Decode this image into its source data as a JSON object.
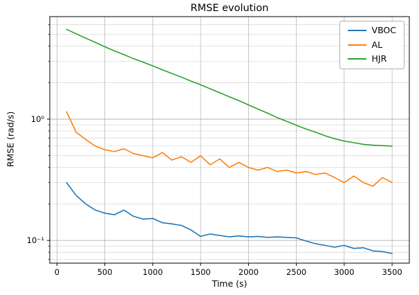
{
  "title": "RMSE evolution",
  "axes": {
    "xlabel": "Time (s)",
    "ylabel": "RMSE (rad/s)"
  },
  "legend": {
    "items": [
      {
        "label": "VBOC"
      },
      {
        "label": "AL"
      },
      {
        "label": "HJR"
      }
    ]
  },
  "chart_data": {
    "type": "line",
    "title": "RMSE evolution",
    "xlabel": "Time (s)",
    "ylabel": "RMSE (rad/s)",
    "yscale": "log",
    "grid": true,
    "legend_position": "upper right",
    "xlim": [
      -75,
      3680
    ],
    "ylim": [
      0.065,
      7.0
    ],
    "xticks": [
      0,
      500,
      1000,
      1500,
      2000,
      2500,
      3000,
      3500
    ],
    "yticks": [
      {
        "value": 1,
        "label": "10⁰"
      },
      {
        "value": 0.1,
        "label": "10⁻¹"
      }
    ],
    "x": [
      100,
      200,
      300,
      400,
      500,
      600,
      700,
      800,
      900,
      1000,
      1100,
      1200,
      1300,
      1400,
      1500,
      1600,
      1700,
      1800,
      1900,
      2000,
      2100,
      2200,
      2300,
      2400,
      2500,
      2600,
      2700,
      2800,
      2900,
      3000,
      3100,
      3200,
      3300,
      3400,
      3500
    ],
    "series": [
      {
        "name": "VBOC",
        "color": "#1f77b4",
        "values": [
          0.3,
          0.235,
          0.2,
          0.178,
          0.168,
          0.163,
          0.178,
          0.158,
          0.15,
          0.152,
          0.14,
          0.137,
          0.133,
          0.122,
          0.108,
          0.113,
          0.11,
          0.107,
          0.109,
          0.107,
          0.108,
          0.106,
          0.107,
          0.106,
          0.105,
          0.099,
          0.094,
          0.091,
          0.088,
          0.091,
          0.086,
          0.087,
          0.082,
          0.081,
          0.078
        ]
      },
      {
        "name": "AL",
        "color": "#ff7f0e",
        "values": [
          1.15,
          0.78,
          0.68,
          0.6,
          0.56,
          0.54,
          0.57,
          0.52,
          0.5,
          0.48,
          0.53,
          0.46,
          0.49,
          0.44,
          0.5,
          0.42,
          0.47,
          0.4,
          0.44,
          0.4,
          0.38,
          0.4,
          0.37,
          0.38,
          0.36,
          0.37,
          0.35,
          0.36,
          0.33,
          0.3,
          0.34,
          0.3,
          0.28,
          0.33,
          0.3
        ]
      },
      {
        "name": "HJR",
        "color": "#2ca02c",
        "values": [
          5.5,
          5.05,
          4.65,
          4.3,
          3.95,
          3.65,
          3.4,
          3.15,
          2.95,
          2.75,
          2.55,
          2.38,
          2.22,
          2.06,
          1.92,
          1.78,
          1.65,
          1.53,
          1.42,
          1.31,
          1.21,
          1.12,
          1.03,
          0.96,
          0.89,
          0.83,
          0.78,
          0.73,
          0.69,
          0.66,
          0.64,
          0.62,
          0.61,
          0.605,
          0.6
        ]
      }
    ]
  }
}
